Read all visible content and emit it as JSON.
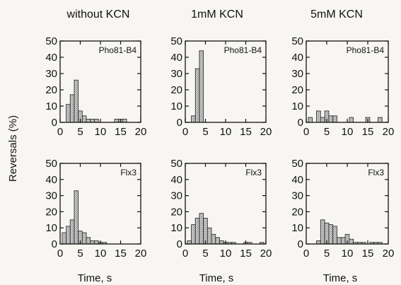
{
  "figure": {
    "ylabel": "Reversals (%)",
    "xlabel": "Time, s",
    "column_titles": [
      "without KCN",
      "1mM KCN",
      "5mM KCN"
    ],
    "colors": {
      "bar_fill": "#bdbdbd",
      "bar_stroke": "#222222",
      "axis": "#111111"
    }
  },
  "chart_data": [
    {
      "type": "bar",
      "condition": "without KCN",
      "label": "Pho81-B4",
      "x": [
        1,
        2,
        3,
        4,
        5,
        6,
        7,
        8,
        9,
        10,
        11,
        12,
        13,
        14,
        15,
        16,
        17,
        18,
        19,
        20
      ],
      "values": [
        0,
        11,
        17,
        26,
        7,
        4,
        2,
        2,
        2,
        0,
        0,
        0,
        0,
        2,
        2,
        2,
        0,
        0,
        0,
        0
      ],
      "xlim": [
        0,
        20
      ],
      "ylim": [
        0,
        50
      ],
      "xticks": [
        0,
        5,
        10,
        15,
        20
      ],
      "yticks": [
        0,
        10,
        20,
        30,
        40,
        50
      ]
    },
    {
      "type": "bar",
      "condition": "1mM KCN",
      "label": "Pho81-B4",
      "x": [
        1,
        2,
        3,
        4,
        5,
        6,
        7,
        8,
        9,
        10,
        11,
        12,
        13,
        14,
        15,
        16,
        17,
        18,
        19,
        20
      ],
      "values": [
        0,
        4,
        33,
        44,
        0,
        0,
        0,
        0,
        0,
        0,
        0,
        0,
        0,
        0,
        0,
        0,
        0,
        0,
        0,
        0
      ],
      "xlim": [
        0,
        20
      ],
      "ylim": [
        0,
        50
      ],
      "xticks": [
        0,
        5,
        10,
        15,
        20
      ],
      "yticks": [
        0,
        10,
        20,
        30,
        40,
        50
      ]
    },
    {
      "type": "bar",
      "condition": "5mM KCN",
      "label": "Pho81-B4",
      "x": [
        1,
        2,
        3,
        4,
        5,
        6,
        7,
        8,
        9,
        10,
        11,
        12,
        13,
        14,
        15,
        16,
        17,
        18,
        19,
        20
      ],
      "values": [
        3,
        0,
        7,
        3,
        7,
        4,
        4,
        0,
        0,
        0,
        3,
        0,
        0,
        0,
        3,
        0,
        0,
        3,
        0,
        0
      ],
      "xlim": [
        0,
        20
      ],
      "ylim": [
        0,
        50
      ],
      "xticks": [
        0,
        5,
        10,
        15,
        20
      ],
      "yticks": [
        0,
        10,
        20,
        30,
        40,
        50
      ]
    },
    {
      "type": "bar",
      "condition": "without KCN",
      "label": "Flx3",
      "x": [
        1,
        2,
        3,
        4,
        5,
        6,
        7,
        8,
        9,
        10,
        11,
        12,
        13,
        14,
        15,
        16,
        17,
        18,
        19,
        20
      ],
      "values": [
        7,
        11,
        15,
        33,
        8,
        7,
        4,
        2,
        2,
        1,
        1,
        0,
        0,
        0,
        0,
        0,
        0,
        0,
        0,
        0
      ],
      "xlim": [
        0,
        20
      ],
      "ylim": [
        0,
        50
      ],
      "xticks": [
        0,
        5,
        10,
        15,
        20
      ],
      "yticks": [
        0,
        10,
        20,
        30,
        40,
        50
      ]
    },
    {
      "type": "bar",
      "condition": "1mM KCN",
      "label": "Flx3",
      "x": [
        1,
        2,
        3,
        4,
        5,
        6,
        7,
        8,
        9,
        10,
        11,
        12,
        13,
        14,
        15,
        16,
        17,
        18,
        19,
        20
      ],
      "values": [
        2,
        12,
        16,
        19,
        16,
        10,
        6,
        4,
        2,
        1,
        1,
        1,
        0,
        0,
        1,
        1,
        0,
        0,
        1,
        0
      ],
      "xlim": [
        0,
        20
      ],
      "ylim": [
        0,
        50
      ],
      "xticks": [
        0,
        5,
        10,
        15,
        20
      ],
      "yticks": [
        0,
        10,
        20,
        30,
        40,
        50
      ]
    },
    {
      "type": "bar",
      "condition": "5mM KCN",
      "label": "Flx3",
      "x": [
        1,
        2,
        3,
        4,
        5,
        6,
        7,
        8,
        9,
        10,
        11,
        12,
        13,
        14,
        15,
        16,
        17,
        18,
        19,
        20
      ],
      "values": [
        0,
        0,
        2,
        15,
        13,
        12,
        11,
        4,
        4,
        6,
        3,
        1,
        1,
        1,
        0,
        1,
        1,
        1,
        0,
        0
      ],
      "xlim": [
        0,
        20
      ],
      "ylim": [
        0,
        50
      ],
      "xticks": [
        0,
        5,
        10,
        15,
        20
      ],
      "yticks": [
        0,
        10,
        20,
        30,
        40,
        50
      ]
    }
  ]
}
